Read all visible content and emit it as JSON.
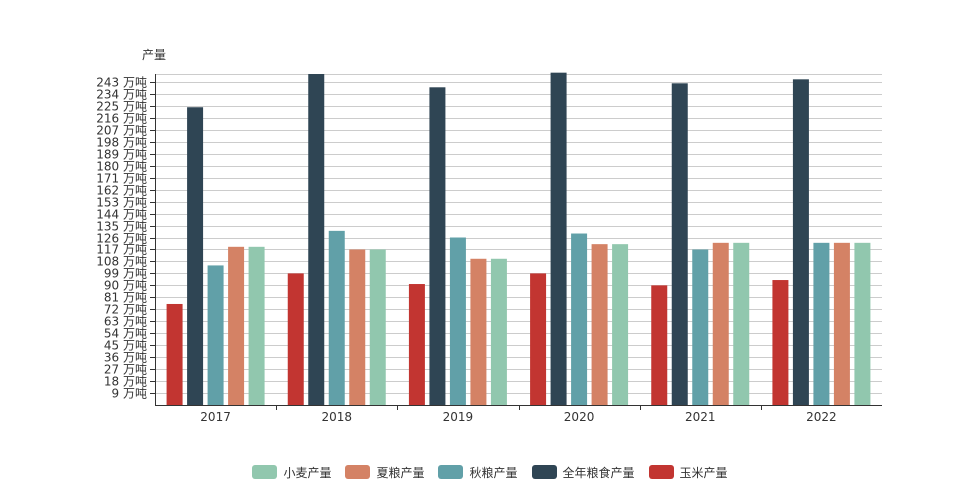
{
  "chart_data": {
    "type": "bar",
    "ylabel": "产量",
    "ytick_suffix": " 万吨",
    "ylim": [
      0,
      249
    ],
    "ytick_step": 9,
    "categories": [
      "2017",
      "2018",
      "2019",
      "2020",
      "2021",
      "2022"
    ],
    "series": [
      {
        "name": "玉米产量",
        "color": "#c23531",
        "values": [
          76,
          99,
          91,
          99,
          90,
          94
        ]
      },
      {
        "name": "全年粮食产量",
        "color": "#2f4554",
        "values": [
          224,
          249,
          239,
          250,
          242,
          245
        ]
      },
      {
        "name": "秋粮产量",
        "color": "#61a0a8",
        "values": [
          105,
          131,
          126,
          129,
          117,
          122
        ]
      },
      {
        "name": "夏粮产量",
        "color": "#d48265",
        "values": [
          119,
          117,
          110,
          121,
          122,
          122
        ]
      },
      {
        "name": "小麦产量",
        "color": "#91c7ae",
        "values": [
          119,
          117,
          110,
          121,
          122,
          122
        ]
      }
    ],
    "legend": {
      "placement": "bottom",
      "order": [
        "小麦产量",
        "夏粮产量",
        "秋粮产量",
        "全年粮食产量",
        "玉米产量"
      ]
    },
    "grid": true
  }
}
